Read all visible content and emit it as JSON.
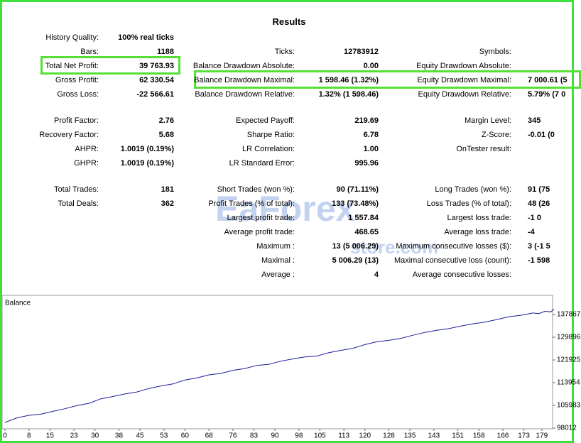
{
  "title": "Results",
  "rows": [
    [
      {
        "label": "History Quality:",
        "value": "100% real ticks"
      },
      null,
      null
    ],
    [
      {
        "label": "Bars:",
        "value": "1188"
      },
      {
        "label": "Ticks:",
        "value": "12783912"
      },
      {
        "label": "Symbols:"
      }
    ],
    [
      {
        "label": "Total Net Profit:",
        "value": "39 763.93"
      },
      {
        "label": "Balance Drawdown Absolute:",
        "value": "0.00"
      },
      {
        "label": "Equity Drawdown Absolute:"
      }
    ],
    [
      {
        "label": "Gross Profit:",
        "value": "62 330.54"
      },
      {
        "label": "Balance Drawdown Maximal:",
        "value": "1 598.46 (1.32%)"
      },
      {
        "label": "Equity Drawdown Maximal:",
        "value": "7 000.61 (5"
      }
    ],
    [
      {
        "label": "Gross Loss:",
        "value": "-22 566.61"
      },
      {
        "label": "Balance Drawdown Relative:",
        "value": "1.32% (1 598.46)"
      },
      {
        "label": "Equity Drawdown Relative:",
        "value": "5.79% (7 0"
      }
    ],
    [
      {
        "label": "Profit Factor:",
        "value": "2.76"
      },
      {
        "label": "Expected Payoff:",
        "value": "219.69"
      },
      {
        "label": "Margin Level:",
        "value": "345"
      }
    ],
    [
      {
        "label": "Recovery Factor:",
        "value": "5.68"
      },
      {
        "label": "Sharpe Ratio:",
        "value": "6.78"
      },
      {
        "label": "Z-Score:",
        "value": "-0.01 (0"
      }
    ],
    [
      {
        "label": "AHPR:",
        "value": "1.0019 (0.19%)"
      },
      {
        "label": "LR Correlation:",
        "value": "1.00"
      },
      {
        "label": "OnTester result:"
      }
    ],
    [
      {
        "label": "GHPR:",
        "value": "1.0019 (0.19%)"
      },
      {
        "label": "LR Standard Error:",
        "value": "995.96"
      },
      null
    ],
    [
      {
        "label": "Total Trades:",
        "value": "181"
      },
      {
        "label": "Short Trades (won %):",
        "value": "90 (71.11%)"
      },
      {
        "label": "Long Trades (won %):",
        "value": "91 (75"
      }
    ],
    [
      {
        "label": "Total Deals:",
        "value": "362"
      },
      {
        "label": "Profit Trades (% of total):",
        "value": "133 (73.48%)"
      },
      {
        "label": "Loss Trades (% of total):",
        "value": "48 (26"
      }
    ],
    [
      null,
      {
        "label": "Largest profit trade:",
        "value": "1 557.84"
      },
      {
        "label": "Largest loss trade:",
        "value": "-1 0"
      }
    ],
    [
      null,
      {
        "label": "Average profit trade:",
        "value": "468.65"
      },
      {
        "label": "Average loss trade:",
        "value": "-4"
      }
    ],
    [
      null,
      {
        "label": "Maximum :",
        "value": "13 (5 006.29)"
      },
      {
        "label": "Maximum consecutive losses ($):",
        "value": "3 (-1 5"
      }
    ],
    [
      null,
      {
        "label": "Maximal :",
        "value": "5 006.29 (13)"
      },
      {
        "label": "Maximal consecutive loss (count):",
        "value": "-1 598"
      }
    ],
    [
      null,
      {
        "label": "Average :",
        "value": "4"
      },
      {
        "label": "Average consecutive losses:"
      }
    ]
  ],
  "watermark": {
    "brand": "EaForex",
    "domain": "store.com"
  },
  "chart_data": {
    "type": "line",
    "x": [
      0,
      4,
      8,
      12,
      16,
      20,
      24,
      28,
      32,
      36,
      40,
      44,
      48,
      52,
      56,
      60,
      64,
      68,
      72,
      76,
      80,
      84,
      88,
      92,
      96,
      100,
      104,
      108,
      112,
      116,
      120,
      124,
      128,
      132,
      136,
      140,
      144,
      148,
      152,
      156,
      160,
      164,
      168,
      172,
      176,
      178,
      180,
      182,
      183
    ],
    "series": [
      {
        "name": "Balance",
        "color": "#1c1c9c",
        "values": [
          100000,
          101600,
          102500,
          102900,
          103900,
          104800,
          105900,
          106700,
          108300,
          109100,
          110000,
          110700,
          111900,
          112800,
          113500,
          114900,
          115600,
          116700,
          117200,
          118300,
          118900,
          120000,
          120400,
          121500,
          122300,
          123000,
          123300,
          124500,
          125300,
          126000,
          127300,
          128300,
          128800,
          129500,
          130600,
          131600,
          132300,
          132900,
          133800,
          134600,
          135200,
          136100,
          137100,
          137600,
          138400,
          138200,
          139000,
          138800,
          139763.93
        ]
      }
    ],
    "xlim": [
      0,
      184
    ],
    "xticks": [
      0,
      8,
      15,
      23,
      30,
      38,
      45,
      53,
      60,
      68,
      76,
      83,
      90,
      98,
      105,
      113,
      120,
      128,
      135,
      143,
      151,
      158,
      166,
      173,
      179
    ],
    "ylim": [
      98012,
      143000
    ],
    "yticks": [
      98012,
      105983,
      113954,
      121925,
      129896,
      137867
    ]
  }
}
